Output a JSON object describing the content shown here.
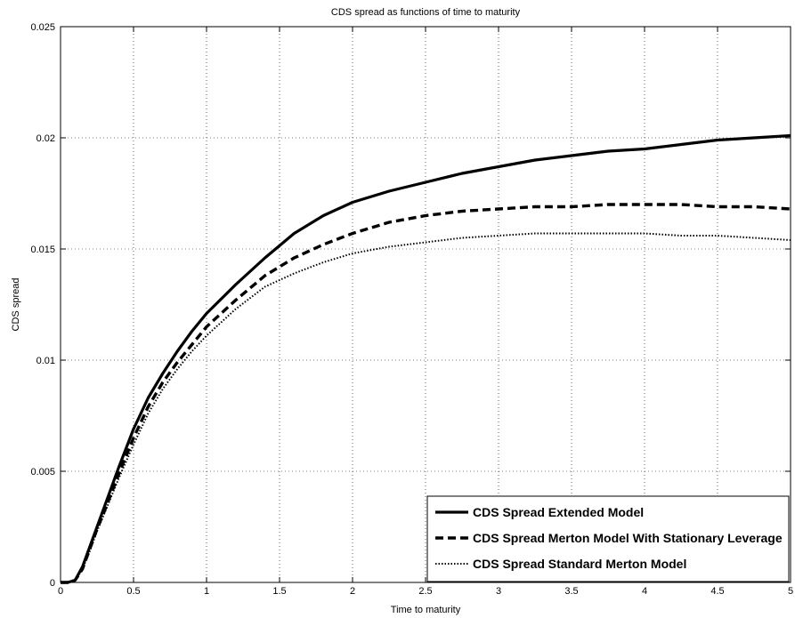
{
  "chart_data": {
    "type": "line",
    "title": "CDS spread as functions of time to maturity",
    "xlabel": "Time to maturity",
    "ylabel": "CDS spread",
    "xlim": [
      0,
      5
    ],
    "ylim": [
      0,
      0.025
    ],
    "xticks": [
      0,
      0.5,
      1,
      1.5,
      2,
      2.5,
      3,
      3.5,
      4,
      4.5,
      5
    ],
    "xtick_labels": [
      "0",
      "0.5",
      "1",
      "1.5",
      "2",
      "2.5",
      "3",
      "3.5",
      "4",
      "4.5",
      "5"
    ],
    "yticks": [
      0,
      0.005,
      0.01,
      0.015,
      0.02,
      0.025
    ],
    "ytick_labels": [
      "0",
      "0.005",
      "0.01",
      "0.015",
      "0.02",
      "0.025"
    ],
    "grid": true,
    "legend_position": "bottom-right",
    "series": [
      {
        "name": "CDS Spread Extended Model",
        "style": "solid",
        "color": "#000000",
        "x": [
          0,
          0.05,
          0.1,
          0.15,
          0.2,
          0.25,
          0.3,
          0.4,
          0.5,
          0.6,
          0.7,
          0.8,
          0.9,
          1.0,
          1.2,
          1.4,
          1.6,
          1.8,
          2.0,
          2.25,
          2.5,
          2.75,
          3.0,
          3.25,
          3.5,
          3.75,
          4.0,
          4.25,
          4.5,
          4.75,
          5.0
        ],
        "y": [
          0,
          0,
          0.0001,
          0.0007,
          0.0016,
          0.0025,
          0.0034,
          0.0052,
          0.0069,
          0.0083,
          0.0094,
          0.0104,
          0.0113,
          0.0121,
          0.0134,
          0.0146,
          0.0157,
          0.0165,
          0.0171,
          0.0176,
          0.018,
          0.0184,
          0.0187,
          0.019,
          0.0192,
          0.0194,
          0.0195,
          0.0197,
          0.0199,
          0.02,
          0.0201
        ]
      },
      {
        "name": "CDS Spread Merton Model With Stationary Leverage",
        "style": "dashed",
        "color": "#000000",
        "x": [
          0,
          0.05,
          0.1,
          0.15,
          0.2,
          0.25,
          0.3,
          0.4,
          0.5,
          0.6,
          0.7,
          0.8,
          0.9,
          1.0,
          1.2,
          1.4,
          1.6,
          1.8,
          2.0,
          2.25,
          2.5,
          2.75,
          3.0,
          3.25,
          3.5,
          3.75,
          4.0,
          4.25,
          4.5,
          4.75,
          5.0
        ],
        "y": [
          0,
          0,
          0.0001,
          0.0006,
          0.0015,
          0.0024,
          0.0032,
          0.0049,
          0.0065,
          0.0079,
          0.009,
          0.0099,
          0.0107,
          0.0115,
          0.0127,
          0.0138,
          0.0146,
          0.0152,
          0.0157,
          0.0162,
          0.0165,
          0.0167,
          0.0168,
          0.0169,
          0.0169,
          0.017,
          0.017,
          0.017,
          0.0169,
          0.0169,
          0.0168
        ]
      },
      {
        "name": "CDS Spread Standard Merton Model",
        "style": "dotted",
        "color": "#000000",
        "x": [
          0,
          0.05,
          0.1,
          0.15,
          0.2,
          0.25,
          0.3,
          0.4,
          0.5,
          0.6,
          0.7,
          0.8,
          0.9,
          1.0,
          1.2,
          1.4,
          1.6,
          1.8,
          2.0,
          2.25,
          2.5,
          2.75,
          3.0,
          3.25,
          3.5,
          3.75,
          4.0,
          4.25,
          4.5,
          4.75,
          5.0
        ],
        "y": [
          0,
          0,
          0.0001,
          0.0006,
          0.0014,
          0.0023,
          0.0031,
          0.0047,
          0.0062,
          0.0076,
          0.0087,
          0.0096,
          0.0104,
          0.0111,
          0.0123,
          0.0133,
          0.0139,
          0.0144,
          0.0148,
          0.0151,
          0.0153,
          0.0155,
          0.0156,
          0.0157,
          0.0157,
          0.0157,
          0.0157,
          0.0156,
          0.0156,
          0.0155,
          0.0154
        ]
      }
    ]
  }
}
